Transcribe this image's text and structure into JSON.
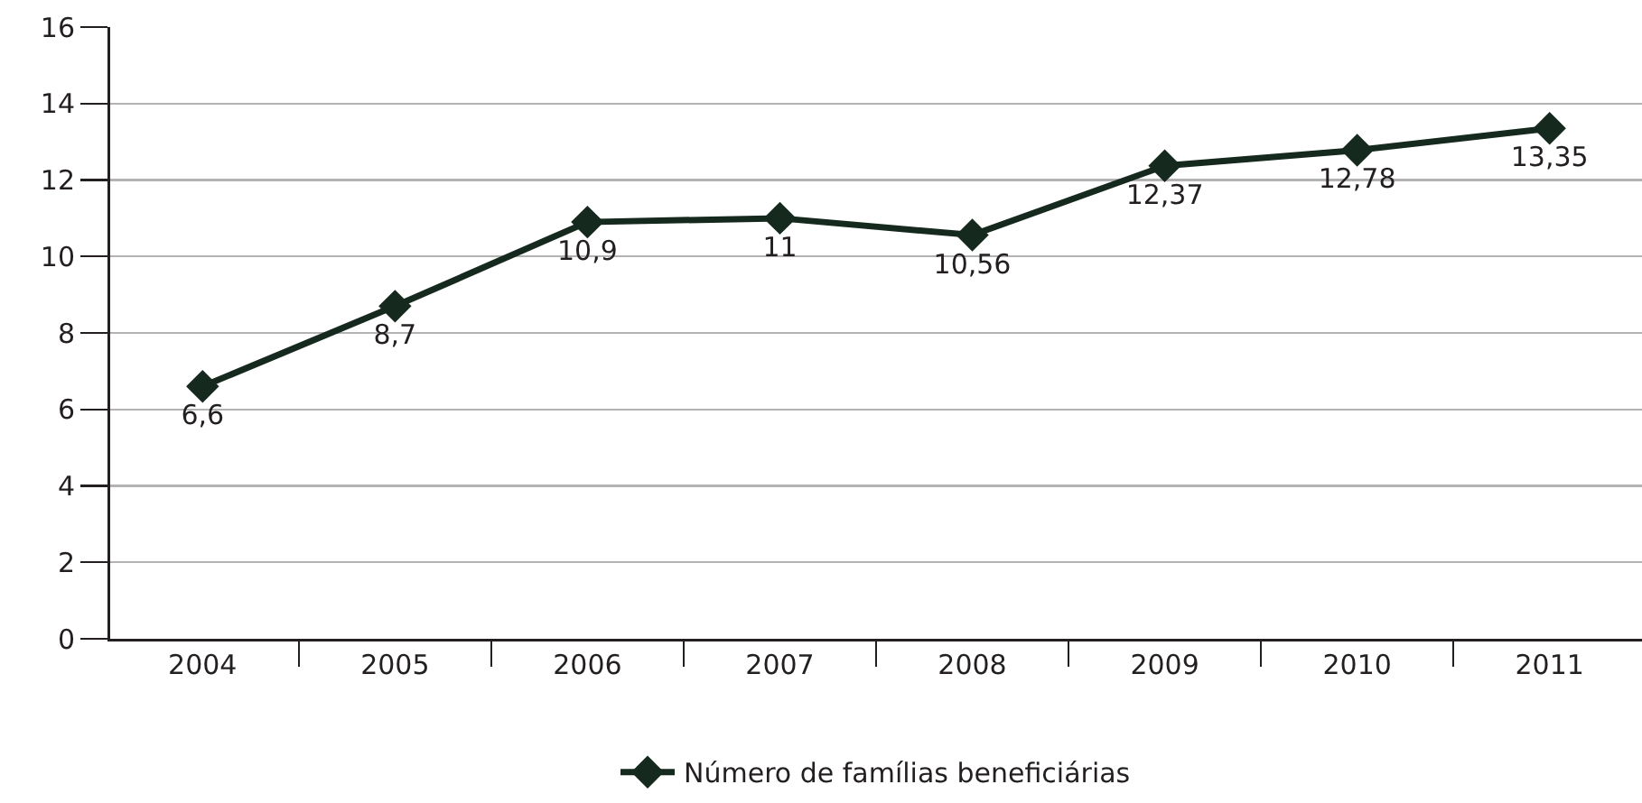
{
  "chart_data": {
    "type": "line",
    "categories": [
      "2004",
      "2005",
      "2006",
      "2007",
      "2008",
      "2009",
      "2010",
      "2011"
    ],
    "series": [
      {
        "name": "Número de famílias beneficiárias",
        "color": "#15291f",
        "values": [
          6.6,
          8.7,
          10.9,
          11,
          10.56,
          12.37,
          12.78,
          13.35
        ],
        "value_labels": [
          "6,6",
          "8,7",
          "10,9",
          "11",
          "10,56",
          "12,37",
          "12,78",
          "13,35"
        ]
      }
    ],
    "ylim": [
      0,
      16
    ],
    "yticks": [
      0,
      2,
      4,
      6,
      8,
      10,
      12,
      14,
      16
    ],
    "grid": "y",
    "legend": "bottom",
    "marker": "diamond",
    "line_style": "solid"
  }
}
